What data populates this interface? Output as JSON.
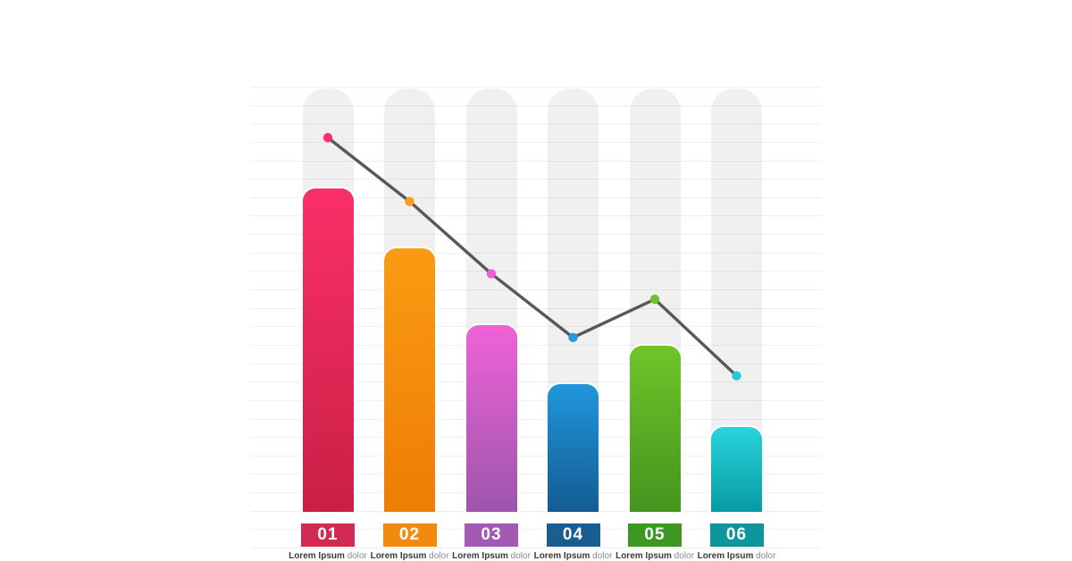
{
  "page": {
    "background": "#ffffff"
  },
  "chart_data": {
    "type": "bar",
    "subtype": "bar-with-line-overlay-infographic",
    "title": "",
    "xlabel": "",
    "ylabel": "",
    "categories": [
      "01",
      "02",
      "03",
      "04",
      "05",
      "06"
    ],
    "series": [
      {
        "name": "bars",
        "type": "bar",
        "values": [
          76,
          62,
          44,
          30,
          39,
          20
        ]
      },
      {
        "name": "trend-line",
        "type": "line",
        "values": [
          88,
          73,
          56,
          41,
          50,
          32
        ]
      }
    ],
    "value_range": [
      0,
      100
    ],
    "grid": true,
    "legend": "none",
    "axis_tick_labels_visible": false
  },
  "line_style": {
    "color": "#58585a",
    "width": 3.4,
    "dot_radius": 5.2
  },
  "grid_style": {
    "line_color": "rgba(0,0,0,0.055)",
    "pill_color": "#f0f0f1"
  },
  "columns": [
    {
      "id": "01",
      "caption_bold": "Lorem Ipsum",
      "caption_rest": "dolor",
      "bar_top": "#fb2f68",
      "bar_bottom": "#c92045",
      "label_bg": "#d22a50",
      "dot": "#fa3169"
    },
    {
      "id": "02",
      "caption_bold": "Lorem Ipsum",
      "caption_rest": "dolor",
      "bar_top": "#fb9b13",
      "bar_bottom": "#ee7d04",
      "label_bg": "#f18a0f",
      "dot": "#f99d1e"
    },
    {
      "id": "03",
      "caption_bold": "Lorem Ipsum",
      "caption_rest": "dolor",
      "bar_top": "#ef62d7",
      "bar_bottom": "#9d56ac",
      "label_bg": "#a25ab3",
      "dot": "#ec5ed2"
    },
    {
      "id": "04",
      "caption_bold": "Lorem Ipsum",
      "caption_rest": "dolor",
      "bar_top": "#2196dc",
      "bar_bottom": "#135c92",
      "label_bg": "#1a5e90",
      "dot": "#2598dc"
    },
    {
      "id": "05",
      "caption_bold": "Lorem Ipsum",
      "caption_rest": "dolor",
      "bar_top": "#70c529",
      "bar_bottom": "#44941f",
      "label_bg": "#3f9723",
      "dot": "#6cc228"
    },
    {
      "id": "06",
      "caption_bold": "Lorem Ipsum",
      "caption_rest": "dolor",
      "bar_top": "#28d4de",
      "bar_bottom": "#079aa2",
      "label_bg": "#0f959d",
      "dot": "#25c8d8"
    }
  ]
}
